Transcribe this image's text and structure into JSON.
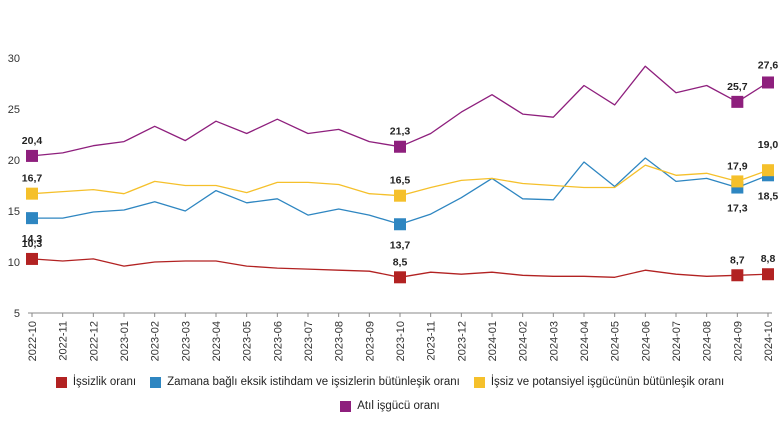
{
  "chart_data": {
    "type": "line",
    "title": "",
    "xlabel": "",
    "ylabel": "",
    "ylim": [
      5,
      30
    ],
    "yticks": [
      5,
      10,
      15,
      20,
      25,
      30
    ],
    "grid": false,
    "legend_position": "bottom",
    "x": [
      "2022-10",
      "2022-11",
      "2022-12",
      "2023-01",
      "2023-02",
      "2023-03",
      "2023-04",
      "2023-05",
      "2023-06",
      "2023-07",
      "2023-08",
      "2023-09",
      "2023-10",
      "2023-11",
      "2023-12",
      "2024-01",
      "2024-02",
      "2024-03",
      "2024-04",
      "2024-05",
      "2024-06",
      "2024-07",
      "2024-08",
      "2024-09",
      "2024-10"
    ],
    "series": [
      {
        "name": "İşsizlik oranı",
        "color": "#b22222",
        "values": [
          10.3,
          10.1,
          10.3,
          9.6,
          10.0,
          10.1,
          10.1,
          9.6,
          9.4,
          9.3,
          9.2,
          9.1,
          8.5,
          9.0,
          8.8,
          9.0,
          8.7,
          8.6,
          8.6,
          8.5,
          9.2,
          8.8,
          8.6,
          8.7,
          8.8
        ],
        "labels": [
          {
            "index": 0,
            "text": "10,3"
          },
          {
            "index": 12,
            "text": "8,5"
          },
          {
            "index": 23,
            "text": "8,7"
          },
          {
            "index": 24,
            "text": "8,8"
          }
        ]
      },
      {
        "name": "Zamana bağlı eksik istihdam ve işsizlerin bütünleşik oranı",
        "color": "#2e86c1",
        "values": [
          14.3,
          14.3,
          14.9,
          15.1,
          15.9,
          15.0,
          17.0,
          15.8,
          16.2,
          14.6,
          15.2,
          14.6,
          13.7,
          14.7,
          16.3,
          18.2,
          16.2,
          16.1,
          19.8,
          17.4,
          20.2,
          17.9,
          18.2,
          17.3,
          18.5
        ],
        "labels": [
          {
            "index": 0,
            "text": "14,3"
          },
          {
            "index": 12,
            "text": "13,7"
          },
          {
            "index": 23,
            "text": "17,3"
          },
          {
            "index": 24,
            "text": "18,5"
          }
        ]
      },
      {
        "name": "İşsiz ve potansiyel işgücünün bütünleşik oranı",
        "color": "#f5c02b",
        "values": [
          16.7,
          16.9,
          17.1,
          16.7,
          17.9,
          17.5,
          17.5,
          16.8,
          17.8,
          17.8,
          17.6,
          16.7,
          16.5,
          17.3,
          18.0,
          18.2,
          17.7,
          17.5,
          17.3,
          17.3,
          19.5,
          18.5,
          18.7,
          17.9,
          19.0
        ],
        "labels": [
          {
            "index": 0,
            "text": "16,7"
          },
          {
            "index": 12,
            "text": "16,5"
          },
          {
            "index": 23,
            "text": "17,9"
          },
          {
            "index": 24,
            "text": "19,0"
          }
        ]
      },
      {
        "name": "Atıl işgücü oranı",
        "color": "#8e1f7d",
        "values": [
          20.4,
          20.7,
          21.4,
          21.8,
          23.3,
          21.9,
          23.8,
          22.6,
          24.0,
          22.6,
          23.0,
          21.8,
          21.3,
          22.6,
          24.7,
          26.4,
          24.5,
          24.2,
          27.3,
          25.4,
          29.2,
          26.6,
          27.3,
          25.7,
          27.6
        ],
        "labels": [
          {
            "index": 0,
            "text": "20,4"
          },
          {
            "index": 12,
            "text": "21,3"
          },
          {
            "index": 23,
            "text": "25,7"
          },
          {
            "index": 24,
            "text": "27,6"
          }
        ]
      }
    ]
  }
}
